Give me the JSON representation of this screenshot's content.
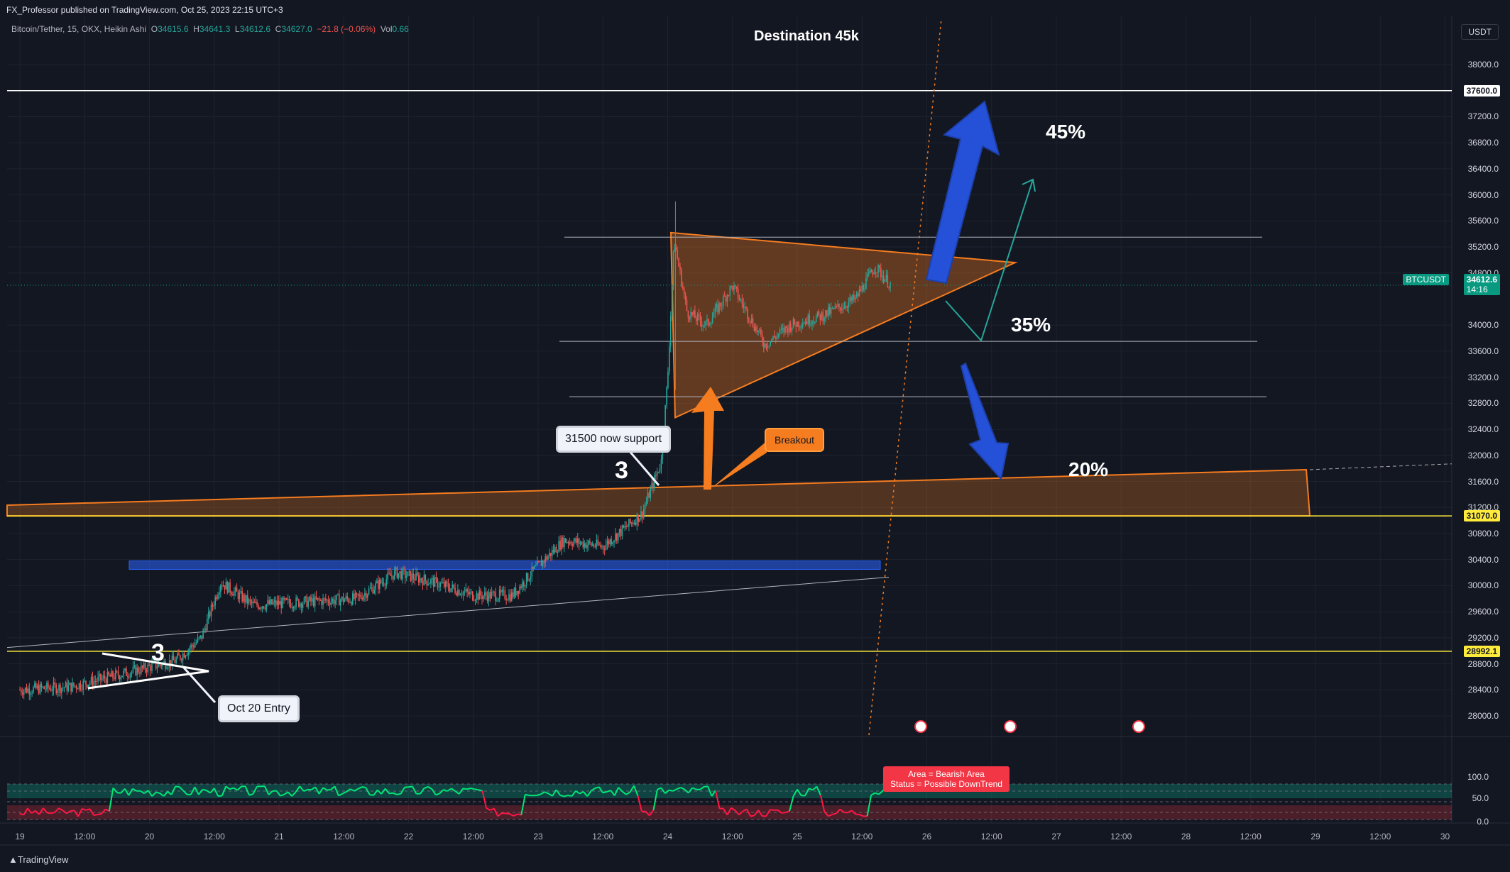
{
  "header": {
    "published_by": "FX_Professor published on TradingView.com, Oct 25, 2023 22:15 UTC+3",
    "symbol": "Bitcoin/Tether, 15, OKX, Heikin Ashi",
    "o_label": "O",
    "o_value": "34615.6",
    "h_label": "H",
    "h_value": "34641.3",
    "l_label": "L",
    "l_value": "34612.6",
    "c_label": "C",
    "c_value": "34627.0",
    "change": "−21.8 (−0.06%)",
    "vol_label": "Vol",
    "vol_value": "0.66",
    "currency": "USDT"
  },
  "chart_data": {
    "type": "candlestick",
    "title": "Destination 45k",
    "y_axis": {
      "ticks": [
        38000.0,
        37200.0,
        36800.0,
        36400.0,
        36000.0,
        35600.0,
        35200.0,
        34800.0,
        34000.0,
        33600.0,
        33200.0,
        32800.0,
        32400.0,
        32000.0,
        31600.0,
        31200.0,
        30800.0,
        30400.0,
        30000.0,
        29600.0,
        29200.0,
        28800.0,
        28400.0,
        28000.0
      ],
      "range": [
        27800,
        38200
      ]
    },
    "x_axis": {
      "ticks": [
        "19",
        "12:00",
        "20",
        "12:00",
        "21",
        "12:00",
        "22",
        "12:00",
        "23",
        "12:00",
        "24",
        "12:00",
        "25",
        "12:00",
        "26",
        "12:00",
        "27",
        "12:00",
        "28",
        "12:00",
        "29",
        "12:00",
        "30"
      ]
    },
    "price_path": [
      {
        "t": 19.0,
        "p": 28400
      },
      {
        "t": 19.4,
        "p": 28450
      },
      {
        "t": 19.8,
        "p": 28650
      },
      {
        "t": 20.2,
        "p": 28850
      },
      {
        "t": 20.4,
        "p": 29200
      },
      {
        "t": 20.55,
        "p": 30050
      },
      {
        "t": 20.8,
        "p": 29700
      },
      {
        "t": 21.2,
        "p": 29750
      },
      {
        "t": 21.6,
        "p": 29800
      },
      {
        "t": 21.9,
        "p": 30200
      },
      {
        "t": 22.2,
        "p": 30050
      },
      {
        "t": 22.5,
        "p": 29850
      },
      {
        "t": 22.8,
        "p": 29850
      },
      {
        "t": 22.95,
        "p": 30200
      },
      {
        "t": 23.2,
        "p": 30700
      },
      {
        "t": 23.5,
        "p": 30600
      },
      {
        "t": 23.8,
        "p": 31100
      },
      {
        "t": 23.95,
        "p": 31900
      },
      {
        "t": 24.0,
        "p": 33200
      },
      {
        "t": 24.05,
        "p": 35300
      },
      {
        "t": 24.15,
        "p": 34200
      },
      {
        "t": 24.3,
        "p": 34000
      },
      {
        "t": 24.5,
        "p": 34600
      },
      {
        "t": 24.75,
        "p": 33700
      },
      {
        "t": 24.95,
        "p": 34000
      },
      {
        "t": 25.2,
        "p": 34150
      },
      {
        "t": 25.45,
        "p": 34400
      },
      {
        "t": 25.6,
        "p": 34900
      },
      {
        "t": 25.72,
        "p": 34620
      }
    ],
    "horizontal_lines": [
      37600.0,
      35350,
      33750,
      32900,
      31070.0,
      28992.1
    ],
    "price_tags": [
      {
        "label": "37600.0",
        "price": 37600.0,
        "bg": "#ffffff",
        "fg": "#131722"
      },
      {
        "label": "31070.0",
        "price": 31070.0,
        "bg": "#ffeb3b",
        "fg": "#131722"
      },
      {
        "label": "28992.1",
        "price": 28992.1,
        "bg": "#ffeb3b",
        "fg": "#131722"
      }
    ],
    "current_price": {
      "symbol": "BTCUSDT",
      "value": "34612.6",
      "countdown": "14:16",
      "color": "#089981"
    },
    "annotations": {
      "pct_45": "45%",
      "pct_35": "35%",
      "pct_20": "20%",
      "wave_1": "3",
      "wave_2": "3",
      "support_note": "31500 now support",
      "breakout_note": "Breakout",
      "entry_note": "Oct 20 Entry"
    },
    "oscillator": {
      "y_ticks": [
        "100.0",
        "50.0",
        "0.0"
      ],
      "note_line1": "Area = Bearish Area",
      "note_line2": "Status =  Possible DownTrend"
    }
  },
  "footer": {
    "brand": "TradingView"
  },
  "colors": {
    "bg": "#131722",
    "up": "#26a69a",
    "down": "#ef5350",
    "orange": "#f57c1f",
    "blue": "#2962ff"
  }
}
